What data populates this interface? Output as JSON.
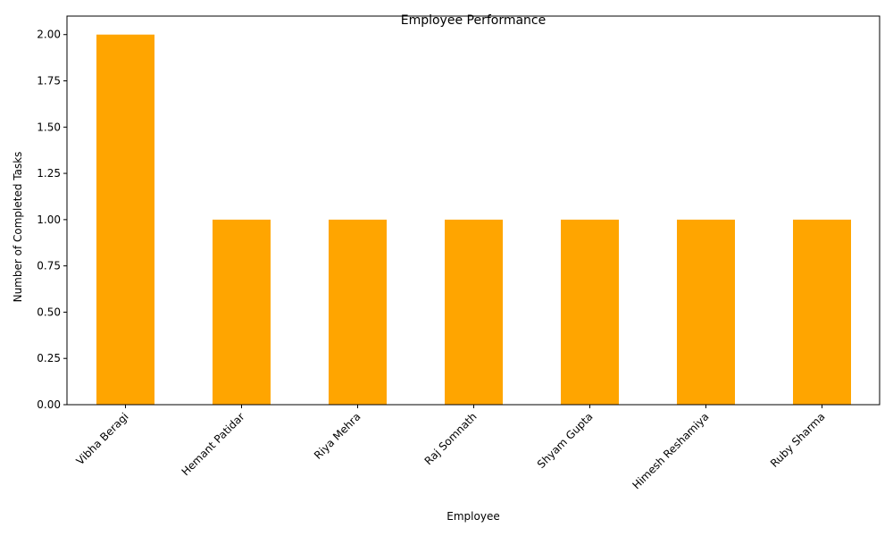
{
  "colors": {
    "bar": "#FFA500",
    "axis": "#000000",
    "background": "#FFFFFF"
  },
  "chart_data": {
    "type": "bar",
    "title": "Employee Performance",
    "xlabel": "Employee",
    "ylabel": "Number of Completed Tasks",
    "categories": [
      "Vibha Beragi",
      "Hemant Patidar",
      "Riya Mehra",
      "Raj Somnath",
      "Shyam Gupta",
      "Himesh Reshamiya",
      "Ruby Sharma"
    ],
    "values": [
      2,
      1,
      1,
      1,
      1,
      1,
      1
    ],
    "ylim": [
      0,
      2.1
    ],
    "yticks": [
      0,
      0.25,
      0.5,
      0.75,
      1,
      1.25,
      1.5,
      1.75,
      2
    ],
    "ytick_labels": [
      "0.00",
      "0.25",
      "0.50",
      "0.75",
      "1.00",
      "1.25",
      "1.50",
      "1.75",
      "2.00"
    ],
    "xtick_rotation": 45,
    "grid": false,
    "legend": "none"
  }
}
